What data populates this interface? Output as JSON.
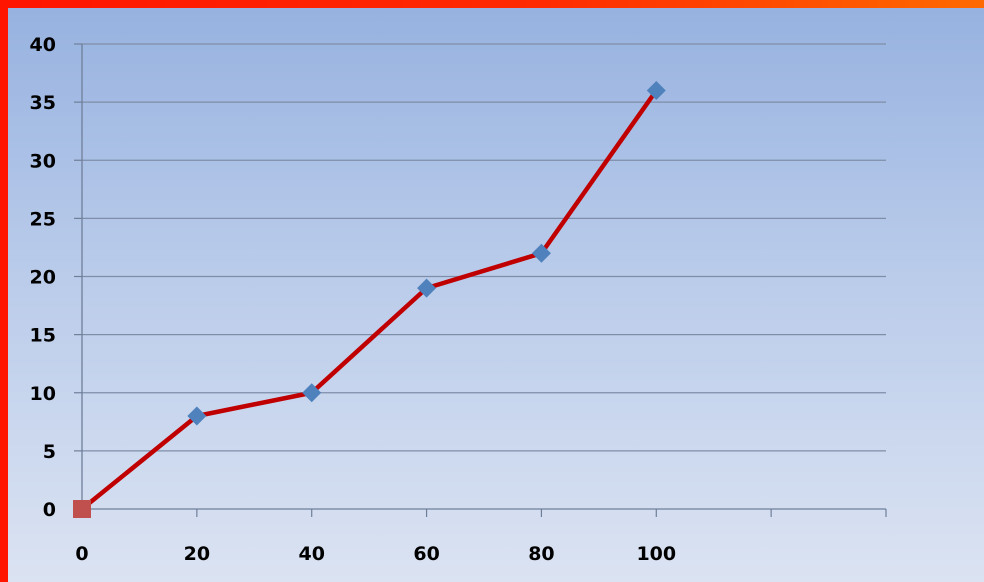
{
  "chart_data": {
    "type": "line",
    "title": "",
    "xlabel": "",
    "ylabel": "",
    "x_ticks": [
      0,
      20,
      40,
      60,
      80,
      100
    ],
    "y_ticks": [
      0,
      5,
      10,
      15,
      20,
      25,
      30,
      35,
      40
    ],
    "xlim": [
      0,
      140
    ],
    "ylim": [
      0,
      40
    ],
    "grid": "horizontal",
    "legend": "none",
    "series": [
      {
        "x": [
          0,
          20,
          40,
          60,
          80,
          100
        ],
        "y": [
          0,
          8,
          10,
          19,
          22,
          36
        ],
        "line_color": "#c00000",
        "marker_color": "#4f81bd",
        "first_marker_color": "#c0504d"
      }
    ]
  }
}
